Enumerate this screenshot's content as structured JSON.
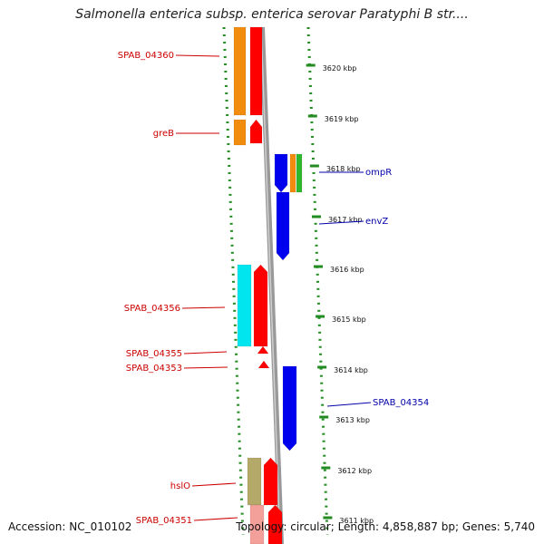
{
  "title": "Salmonella enterica subsp. enterica serovar Paratyphi B str....",
  "footer": {
    "accession_label": "Accession:",
    "accession": "NC_010102",
    "topology_label": "Topology:",
    "topology": "circular;",
    "length_label": "Length:",
    "length": "4,858,887 bp;",
    "genes_label": "Genes:",
    "genes": "5,740"
  },
  "colors": {
    "backbone": "#999999",
    "ruler": "#228b22",
    "left_labels": "#cc0000",
    "right_labels": "#0000aa",
    "forward": "#ff0000",
    "reverse": "#0000ee",
    "orange": "#f28c0f",
    "cyan": "#00e5ee",
    "green": "#2eb82e",
    "olive": "#b5a96a"
  },
  "ticks": [
    {
      "label": "3620 kbp"
    },
    {
      "label": "3619 kbp"
    },
    {
      "label": "3618 kbp"
    },
    {
      "label": "3617 kbp"
    },
    {
      "label": "3616 kbp"
    },
    {
      "label": "3615 kbp"
    },
    {
      "label": "3614 kbp"
    },
    {
      "label": "3613 kbp"
    },
    {
      "label": "3612 kbp"
    },
    {
      "label": "3611 kbp"
    }
  ],
  "genes": [
    {
      "name": "SPAB_04360",
      "side": "left",
      "strand": "forward"
    },
    {
      "name": "greB",
      "side": "left",
      "strand": "forward"
    },
    {
      "name": "ompR",
      "side": "right",
      "strand": "reverse"
    },
    {
      "name": "envZ",
      "side": "right",
      "strand": "reverse"
    },
    {
      "name": "SPAB_04356",
      "side": "left",
      "strand": "forward"
    },
    {
      "name": "SPAB_04355",
      "side": "left",
      "strand": "forward"
    },
    {
      "name": "SPAB_04353",
      "side": "left",
      "strand": "forward"
    },
    {
      "name": "SPAB_04354",
      "side": "right",
      "strand": "reverse"
    },
    {
      "name": "hslO",
      "side": "left",
      "strand": "forward"
    },
    {
      "name": "SPAB_04351",
      "side": "left",
      "strand": "forward"
    }
  ]
}
